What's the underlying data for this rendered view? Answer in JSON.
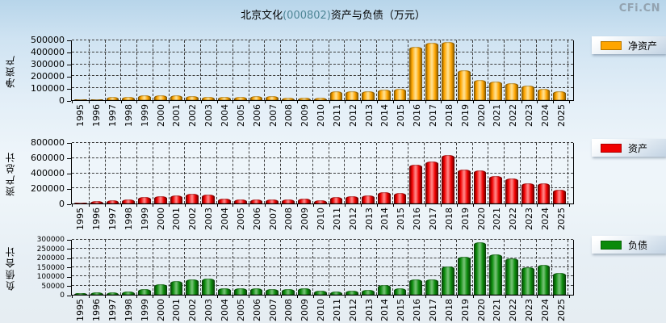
{
  "header": {
    "title_prefix": "北京文化",
    "title_code": "(000802)",
    "title_suffix": "资产与负债（万元）",
    "title_code_color": "#4e8696",
    "watermark": "CFi.CN"
  },
  "chart_data": [
    {
      "type": "bar",
      "name": "net-assets",
      "ylabel": "净资产",
      "legend": "净资产",
      "legend_position": "right",
      "grid": true,
      "color": "#FFA500",
      "color_dark": "#7A5200",
      "color_light": "#FFDE8A",
      "ylim": [
        0,
        500000
      ],
      "yticks": [
        0,
        100000,
        200000,
        300000,
        400000,
        500000
      ],
      "categories": [
        "1995",
        "1996",
        "1997",
        "1998",
        "1999",
        "2000",
        "2001",
        "2002",
        "2003",
        "2004",
        "2005",
        "2006",
        "2007",
        "2008",
        "2009",
        "2010",
        "2011",
        "2012",
        "2013",
        "2014",
        "2015",
        "2016",
        "2017",
        "2018",
        "2019",
        "2020",
        "2021",
        "2022",
        "2023",
        "2024",
        "2025"
      ],
      "values": [
        10000,
        5000,
        30000,
        30000,
        42000,
        43000,
        41000,
        35000,
        29000,
        25000,
        27000,
        33000,
        34000,
        21000,
        21000,
        23000,
        73000,
        77000,
        73000,
        86000,
        97000,
        444000,
        478000,
        487000,
        249000,
        167000,
        153000,
        143000,
        121000,
        98000,
        76000
      ]
    },
    {
      "type": "bar",
      "name": "total-assets",
      "ylabel": "资产总计",
      "legend": "资产",
      "legend_position": "right",
      "grid": true,
      "color": "#F00000",
      "color_dark": "#5C0000",
      "color_light": "#FF8080",
      "ylim": [
        0,
        800000
      ],
      "yticks": [
        0,
        200000,
        400000,
        600000,
        800000
      ],
      "categories": [
        "1995",
        "1996",
        "1997",
        "1998",
        "1999",
        "2000",
        "2001",
        "2002",
        "2003",
        "2004",
        "2005",
        "2006",
        "2007",
        "2008",
        "2009",
        "2010",
        "2011",
        "2012",
        "2013",
        "2014",
        "2015",
        "2016",
        "2017",
        "2018",
        "2019",
        "2020",
        "2021",
        "2022",
        "2023",
        "2024",
        "2025"
      ],
      "values": [
        16000,
        29000,
        48000,
        58000,
        84000,
        101000,
        112000,
        124000,
        113000,
        59000,
        52000,
        56000,
        52000,
        56000,
        59000,
        43000,
        81000,
        93000,
        104000,
        150000,
        137000,
        516000,
        555000,
        643000,
        446000,
        442000,
        364000,
        335000,
        267000,
        265000,
        184000
      ]
    },
    {
      "type": "bar",
      "name": "total-liabilities",
      "ylabel": "负债合计",
      "legend": "负债",
      "legend_position": "right",
      "grid": true,
      "color": "#0A8A0A",
      "color_dark": "#0B3B0B",
      "color_light": "#6FBF6F",
      "ylim": [
        0,
        300000
      ],
      "yticks": [
        0,
        50000,
        100000,
        150000,
        200000,
        250000,
        300000
      ],
      "categories": [
        "1995",
        "1996",
        "1997",
        "1998",
        "1999",
        "2000",
        "2001",
        "2002",
        "2003",
        "2004",
        "2005",
        "2006",
        "2007",
        "2008",
        "2009",
        "2010",
        "2011",
        "2012",
        "2013",
        "2014",
        "2015",
        "2016",
        "2017",
        "2018",
        "2019",
        "2020",
        "2021",
        "2022",
        "2023",
        "2024",
        "2025"
      ],
      "values": [
        9000,
        13000,
        14000,
        19000,
        32000,
        56000,
        75000,
        86000,
        90000,
        36000,
        34000,
        34000,
        30000,
        31000,
        34000,
        24000,
        17000,
        20000,
        28000,
        53000,
        37000,
        83000,
        85000,
        154000,
        209000,
        288000,
        221000,
        198000,
        151000,
        163000,
        118000
      ]
    }
  ]
}
